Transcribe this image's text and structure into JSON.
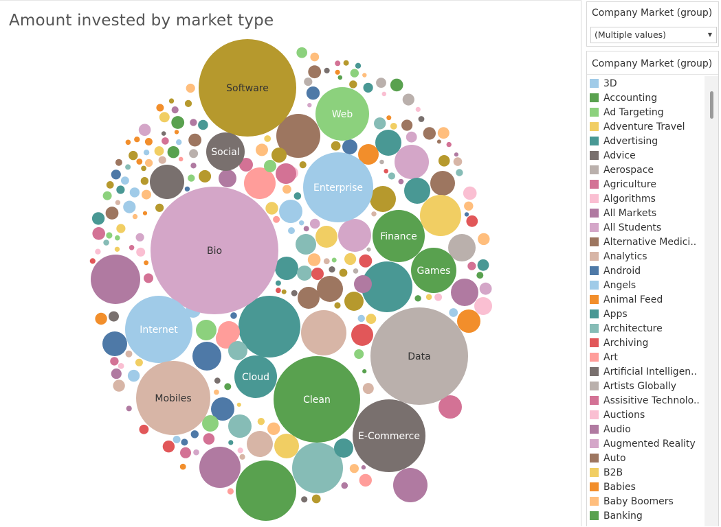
{
  "title": "Amount invested by market type",
  "filter": {
    "title": "Company Market (group)",
    "value": "(Multiple values)"
  },
  "legend": {
    "title": "Company Market (group)",
    "items": [
      {
        "label": "3D",
        "color": "#a0cbe8"
      },
      {
        "label": "Accounting",
        "color": "#59a14f"
      },
      {
        "label": "Ad Targeting",
        "color": "#8cd17d"
      },
      {
        "label": "Adventure Travel",
        "color": "#f1ce63"
      },
      {
        "label": "Advertising",
        "color": "#499894"
      },
      {
        "label": "Advice",
        "color": "#79706e"
      },
      {
        "label": "Aerospace",
        "color": "#bab0ac"
      },
      {
        "label": "Agriculture",
        "color": "#d37295"
      },
      {
        "label": "Algorithms",
        "color": "#fabfd2"
      },
      {
        "label": "All Markets",
        "color": "#b07aa1"
      },
      {
        "label": "All Students",
        "color": "#d4a6c8"
      },
      {
        "label": "Alternative Medici..",
        "color": "#9d7660"
      },
      {
        "label": "Analytics",
        "color": "#d7b5a6"
      },
      {
        "label": "Android",
        "color": "#4e79a7"
      },
      {
        "label": "Angels",
        "color": "#a0cbe8"
      },
      {
        "label": "Animal Feed",
        "color": "#f28e2b"
      },
      {
        "label": "Apps",
        "color": "#499894"
      },
      {
        "label": "Architecture",
        "color": "#86bcb6"
      },
      {
        "label": "Archiving",
        "color": "#e15759"
      },
      {
        "label": "Art",
        "color": "#ff9d9a"
      },
      {
        "label": "Artificial Intelligen..",
        "color": "#79706e"
      },
      {
        "label": "Artists Globally",
        "color": "#bab0ac"
      },
      {
        "label": "Assisitive Technolo..",
        "color": "#d37295"
      },
      {
        "label": "Auctions",
        "color": "#fabfd2"
      },
      {
        "label": "Audio",
        "color": "#b07aa1"
      },
      {
        "label": "Augmented Reality",
        "color": "#d4a6c8"
      },
      {
        "label": "Auto",
        "color": "#9d7660"
      },
      {
        "label": "B2B",
        "color": "#f1ce63"
      },
      {
        "label": "Babies",
        "color": "#f28e2b"
      },
      {
        "label": "Baby Boomers",
        "color": "#ffbe7d"
      },
      {
        "label": "Banking",
        "color": "#59a14f"
      }
    ]
  },
  "chart_data": {
    "type": "packed-bubble",
    "title": "Amount invested by market type",
    "labeled_bubbles": [
      {
        "name": "Software",
        "color": "#b6992d"
      },
      {
        "name": "Web",
        "color": "#8cd17d"
      },
      {
        "name": "Social",
        "color": "#79706e"
      },
      {
        "name": "Enterprise",
        "color": "#a0cbe8"
      },
      {
        "name": "Bio",
        "color": "#d4a6c8"
      },
      {
        "name": "Finance",
        "color": "#59a14f"
      },
      {
        "name": "Games",
        "color": "#59a14f"
      },
      {
        "name": "Internet",
        "color": "#a0cbe8"
      },
      {
        "name": "Data",
        "color": "#bab0ac"
      },
      {
        "name": "Cloud",
        "color": "#499894"
      },
      {
        "name": "Mobiles",
        "color": "#d7b5a6"
      },
      {
        "name": "Clean",
        "color": "#59a14f"
      },
      {
        "name": "E-Commerce",
        "color": "#79706e"
      }
    ]
  }
}
